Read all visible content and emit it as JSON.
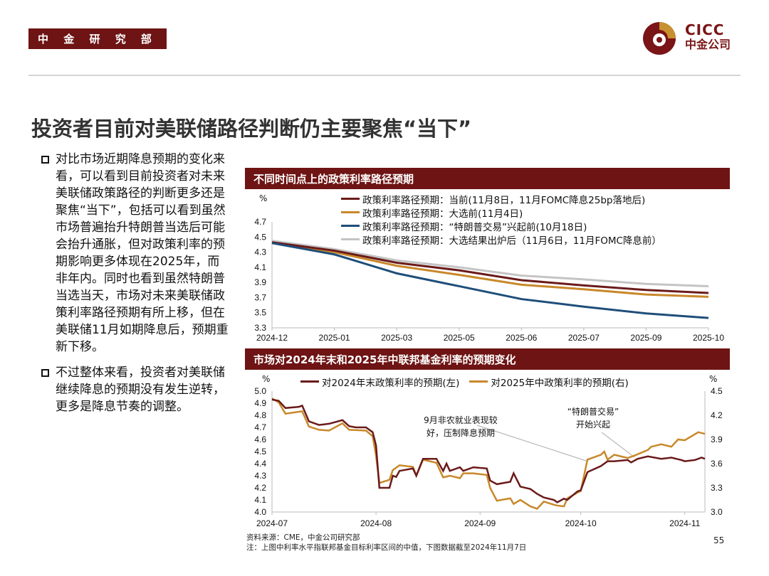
{
  "header": {
    "department": "中 金 研 究 部",
    "logo_en": "CICC",
    "logo_cn": "中金公司"
  },
  "title": "投资者目前对美联储路径判断仍主要聚焦“当下”",
  "bullets": [
    "对比市场近期降息预期的变化来看，可以看到目前投资者对未来美联储政策路径的判断更多还是聚焦“当下”，包括可以看到虽然市场普遍抬升特朗普当选后可能会抬升通胀，但对政策利率的预期影响更多体现在2025年，而非年内。同时也看到虽然特朗普当选当天，市场对未来美联储政策利率路径预期有所上移，但在美联储11月如期降息后，预期重新下移。",
    "不过整体来看，投资者对美联储继续降息的预期没有发生逆转，更多是降息节奏的调整。"
  ],
  "colors": {
    "brand": "#6e1414",
    "maroon": "#6b1a1a",
    "orange": "#c8882a",
    "blue": "#1f4e79",
    "gray": "#c4c4c4"
  },
  "chart_data": [
    {
      "type": "line",
      "title": "不同时间点上的政策利率路径预期",
      "ylabel": "%",
      "ylim": [
        3.3,
        4.7
      ],
      "yticks": [
        "4.7",
        "4.5",
        "4.3",
        "4.1",
        "3.9",
        "3.7",
        "3.5",
        "3.3"
      ],
      "categories": [
        "2024-12",
        "2025-01",
        "2025-03",
        "2025-05",
        "2025-06",
        "2025-07",
        "2025-09",
        "2025-10"
      ],
      "grid": false,
      "legend": "top",
      "series": [
        {
          "name": "政策利率路径预期：当前(11月8日，11月FOMC降息25bp落地后)",
          "color": "#6b1a1a",
          "values": [
            4.43,
            4.32,
            4.16,
            4.06,
            3.93,
            3.86,
            3.8,
            3.76
          ]
        },
        {
          "name": "政策利率路径预期：大选前(11月4日)",
          "color": "#c8882a",
          "values": [
            4.42,
            4.3,
            4.12,
            4.0,
            3.87,
            3.81,
            3.74,
            3.71
          ]
        },
        {
          "name": "政策利率路径预期：“特朗普交易”兴起前(10月18日)",
          "color": "#1f4e79",
          "values": [
            4.42,
            4.27,
            4.02,
            3.85,
            3.68,
            3.58,
            3.49,
            3.43
          ]
        },
        {
          "name": "政策利率路径预期：大选结果出炉后（11月6日，11月FOMC降息前）",
          "color": "#c4c4c4",
          "values": [
            4.45,
            4.34,
            4.19,
            4.1,
            3.99,
            3.94,
            3.88,
            3.85
          ]
        }
      ]
    },
    {
      "type": "line",
      "title": "市场对2024年末和2025年中联邦基金利率的预期变化",
      "ylabel_left": "%",
      "ylabel_right": "%",
      "ylim_left": [
        4.0,
        5.0
      ],
      "ylim_right": [
        3.0,
        4.5
      ],
      "yticks_left": [
        "5.0",
        "4.9",
        "4.8",
        "4.7",
        "4.6",
        "4.5",
        "4.4",
        "4.3",
        "4.2",
        "4.1",
        "4.0"
      ],
      "yticks_right": [
        "4.5",
        "4.2",
        "3.9",
        "3.6",
        "3.3",
        "3.0"
      ],
      "xticks": [
        "2024-07",
        "2024-08",
        "2024-09",
        "2024-10",
        "2024-11"
      ],
      "xlim": [
        "2024-07-01",
        "2024-11-07"
      ],
      "grid": false,
      "legend": "top",
      "annotations": [
        {
          "text": "9月非农就业表现较好，压制降息预期",
          "line1": "9月非农就业表现较",
          "line2": "好，压制降息预期",
          "date": "2024-10-03"
        },
        {
          "text": "“特朗普交易”开始兴起",
          "line1": "“特朗普交易”",
          "line2": "开始兴起",
          "date": "2024-10-17"
        }
      ],
      "series": [
        {
          "name": "对2024年末政策利率的预期(左)",
          "axis": "left",
          "color": "#6b1a1a",
          "points": [
            [
              "2024-07-01",
              4.93
            ],
            [
              "2024-07-03",
              4.92
            ],
            [
              "2024-07-05",
              4.86
            ],
            [
              "2024-07-09",
              4.87
            ],
            [
              "2024-07-10",
              4.88
            ],
            [
              "2024-07-12",
              4.75
            ],
            [
              "2024-07-15",
              4.72
            ],
            [
              "2024-07-18",
              4.73
            ],
            [
              "2024-07-22",
              4.76
            ],
            [
              "2024-07-24",
              4.71
            ],
            [
              "2024-07-26",
              4.7
            ],
            [
              "2024-07-29",
              4.7
            ],
            [
              "2024-07-31",
              4.66
            ],
            [
              "2024-08-01",
              4.55
            ],
            [
              "2024-08-02",
              4.2
            ],
            [
              "2024-08-05",
              4.2
            ],
            [
              "2024-08-06",
              4.3
            ],
            [
              "2024-08-07",
              4.29
            ],
            [
              "2024-08-08",
              4.34
            ],
            [
              "2024-08-12",
              4.36
            ],
            [
              "2024-08-13",
              4.3
            ],
            [
              "2024-08-15",
              4.44
            ],
            [
              "2024-08-19",
              4.44
            ],
            [
              "2024-08-21",
              4.34
            ],
            [
              "2024-08-22",
              4.4
            ],
            [
              "2024-08-23",
              4.34
            ],
            [
              "2024-08-26",
              4.37
            ],
            [
              "2024-08-27",
              4.34
            ],
            [
              "2024-08-30",
              4.37
            ],
            [
              "2024-09-03",
              4.36
            ],
            [
              "2024-09-04",
              4.26
            ],
            [
              "2024-09-06",
              4.23
            ],
            [
              "2024-09-10",
              4.25
            ],
            [
              "2024-09-11",
              4.32
            ],
            [
              "2024-09-13",
              4.21
            ],
            [
              "2024-09-16",
              4.19
            ],
            [
              "2024-09-18",
              4.15
            ],
            [
              "2024-09-20",
              4.12
            ],
            [
              "2024-09-23",
              4.1
            ],
            [
              "2024-09-24",
              4.08
            ],
            [
              "2024-09-26",
              4.11
            ],
            [
              "2024-09-27",
              4.1
            ],
            [
              "2024-09-30",
              4.17
            ],
            [
              "2024-10-01",
              4.18
            ],
            [
              "2024-10-03",
              4.33
            ],
            [
              "2024-10-07",
              4.38
            ],
            [
              "2024-10-09",
              4.42
            ],
            [
              "2024-10-11",
              4.42
            ],
            [
              "2024-10-15",
              4.43
            ],
            [
              "2024-10-16",
              4.41
            ],
            [
              "2024-10-18",
              4.44
            ],
            [
              "2024-10-21",
              4.46
            ],
            [
              "2024-10-25",
              4.44
            ],
            [
              "2024-10-28",
              4.45
            ],
            [
              "2024-10-31",
              4.43
            ],
            [
              "2024-11-01",
              4.42
            ],
            [
              "2024-11-04",
              4.43
            ],
            [
              "2024-11-06",
              4.45
            ],
            [
              "2024-11-07",
              4.44
            ]
          ]
        },
        {
          "name": "对2025年中政策利率的预期(右)",
          "axis": "right",
          "color": "#c8882a",
          "points": [
            [
              "2024-07-01",
              4.41
            ],
            [
              "2024-07-03",
              4.36
            ],
            [
              "2024-07-05",
              4.22
            ],
            [
              "2024-07-10",
              4.25
            ],
            [
              "2024-07-12",
              4.06
            ],
            [
              "2024-07-15",
              4.02
            ],
            [
              "2024-07-18",
              4.01
            ],
            [
              "2024-07-22",
              4.1
            ],
            [
              "2024-07-24",
              4.02
            ],
            [
              "2024-07-29",
              4.01
            ],
            [
              "2024-07-31",
              3.94
            ],
            [
              "2024-08-01",
              3.7
            ],
            [
              "2024-08-02",
              3.36
            ],
            [
              "2024-08-05",
              3.4
            ],
            [
              "2024-08-06",
              3.52
            ],
            [
              "2024-08-08",
              3.58
            ],
            [
              "2024-08-12",
              3.56
            ],
            [
              "2024-08-13",
              3.45
            ],
            [
              "2024-08-15",
              3.65
            ],
            [
              "2024-08-19",
              3.61
            ],
            [
              "2024-08-21",
              3.43
            ],
            [
              "2024-08-23",
              3.45
            ],
            [
              "2024-08-26",
              3.42
            ],
            [
              "2024-08-27",
              3.48
            ],
            [
              "2024-08-30",
              3.48
            ],
            [
              "2024-09-03",
              3.46
            ],
            [
              "2024-09-04",
              3.3
            ],
            [
              "2024-09-06",
              3.14
            ],
            [
              "2024-09-10",
              3.17
            ],
            [
              "2024-09-11",
              3.1
            ],
            [
              "2024-09-13",
              3.15
            ],
            [
              "2024-09-16",
              3.07
            ],
            [
              "2024-09-18",
              3.04
            ],
            [
              "2024-09-20",
              3.13
            ],
            [
              "2024-09-23",
              3.09
            ],
            [
              "2024-09-24",
              3.08
            ],
            [
              "2024-09-26",
              3.07
            ],
            [
              "2024-09-27",
              3.17
            ],
            [
              "2024-09-30",
              3.24
            ],
            [
              "2024-10-01",
              3.26
            ],
            [
              "2024-10-03",
              3.65
            ],
            [
              "2024-10-07",
              3.71
            ],
            [
              "2024-10-08",
              3.75
            ],
            [
              "2024-10-09",
              3.65
            ],
            [
              "2024-10-11",
              3.71
            ],
            [
              "2024-10-15",
              3.67
            ],
            [
              "2024-10-17",
              3.7
            ],
            [
              "2024-10-21",
              3.77
            ],
            [
              "2024-10-22",
              3.81
            ],
            [
              "2024-10-25",
              3.84
            ],
            [
              "2024-10-28",
              3.81
            ],
            [
              "2024-10-30",
              3.9
            ],
            [
              "2024-11-01",
              3.89
            ],
            [
              "2024-11-05",
              3.99
            ],
            [
              "2024-11-07",
              3.97
            ]
          ]
        }
      ]
    }
  ],
  "footer": {
    "source": "资料来源：CME，中金公司研究部",
    "note": "注：上图中利率水平指联邦基金目标利率区间的中值，下图数据截至2024年11月7日",
    "page": "55"
  }
}
